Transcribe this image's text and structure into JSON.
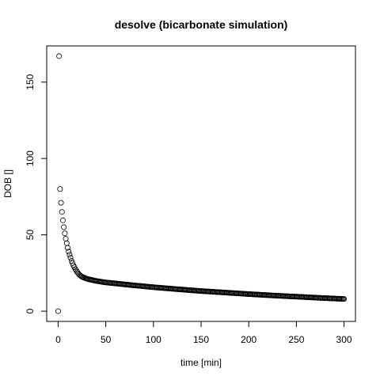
{
  "chart_data": {
    "type": "scatter",
    "title": "desolve (bicarbonate simulation)",
    "xlabel": "time [min]",
    "ylabel": "DOB []",
    "xlim": [
      -12,
      312
    ],
    "ylim": [
      -6.7,
      173.7
    ],
    "x_ticks": [
      0,
      50,
      100,
      150,
      200,
      250,
      300
    ],
    "y_ticks": [
      0,
      50,
      100,
      150
    ],
    "x_tick_labels": [
      "0",
      "50",
      "100",
      "150",
      "200",
      "250",
      "300"
    ],
    "y_tick_labels": [
      "0",
      "50",
      "100",
      "150"
    ],
    "marker": "open-circle",
    "grid": false,
    "legend": "none",
    "series": [
      {
        "x_start": 0,
        "x_end": 300,
        "x_step": 1,
        "points": [
          [
            0,
            0
          ],
          [
            1,
            167
          ],
          [
            2,
            80
          ],
          [
            3,
            71
          ],
          [
            4,
            65
          ],
          [
            5,
            59.5
          ],
          [
            6,
            55
          ],
          [
            7,
            51
          ],
          [
            8,
            47.5
          ],
          [
            9,
            44.5
          ],
          [
            10,
            41.5
          ],
          [
            11,
            39
          ],
          [
            12,
            37
          ],
          [
            13,
            35
          ],
          [
            14,
            33
          ],
          [
            15,
            31.5
          ],
          [
            16,
            30
          ],
          [
            17,
            28.8
          ],
          [
            18,
            27.6
          ],
          [
            19,
            26.6
          ],
          [
            20,
            25.6
          ],
          [
            22,
            24
          ],
          [
            25,
            22.5
          ],
          [
            30,
            21.2
          ],
          [
            40,
            19.8
          ],
          [
            50,
            18.8
          ],
          [
            75,
            17.2
          ],
          [
            100,
            15.7
          ],
          [
            125,
            14.4
          ],
          [
            150,
            13.2
          ],
          [
            175,
            12.2
          ],
          [
            200,
            11.2
          ],
          [
            225,
            10.3
          ],
          [
            250,
            9.5
          ],
          [
            275,
            8.7
          ],
          [
            300,
            8
          ]
        ]
      }
    ]
  }
}
